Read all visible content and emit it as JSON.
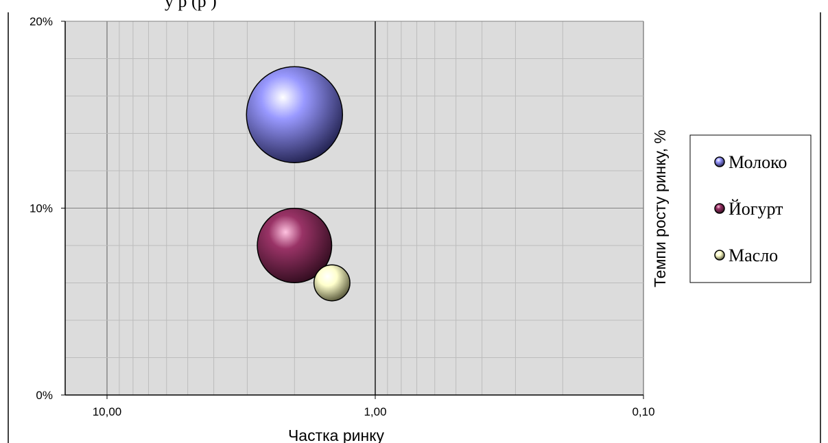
{
  "header_fragment": "у  р           (р    )",
  "chart_data": {
    "type": "bubble",
    "title": "",
    "xlabel": "Частка ринку",
    "ylabel": "Темпи росту ринку, %",
    "x_scale": "log",
    "x_reversed": true,
    "xlim": [
      15,
      0.1
    ],
    "ylim": [
      0,
      20
    ],
    "x_ticks": [
      {
        "value": 10,
        "label": "10,00"
      },
      {
        "value": 1,
        "label": "1,00"
      },
      {
        "value": 0.1,
        "label": "0,10"
      }
    ],
    "y_ticks": [
      {
        "value": 0,
        "label": "0%"
      },
      {
        "value": 10,
        "label": "10%"
      },
      {
        "value": 20,
        "label": "20%"
      }
    ],
    "grid": true,
    "legend_position": "right",
    "series": [
      {
        "name": "Молоко",
        "x": 2.0,
        "y": 15,
        "size": 1.0,
        "color": "#9999ff"
      },
      {
        "name": "Йогурт",
        "x": 2.0,
        "y": 8,
        "size": 0.6,
        "color": "#993366"
      },
      {
        "name": "Масло",
        "x": 1.45,
        "y": 6,
        "size": 0.14,
        "color": "#ffffcc"
      }
    ]
  }
}
